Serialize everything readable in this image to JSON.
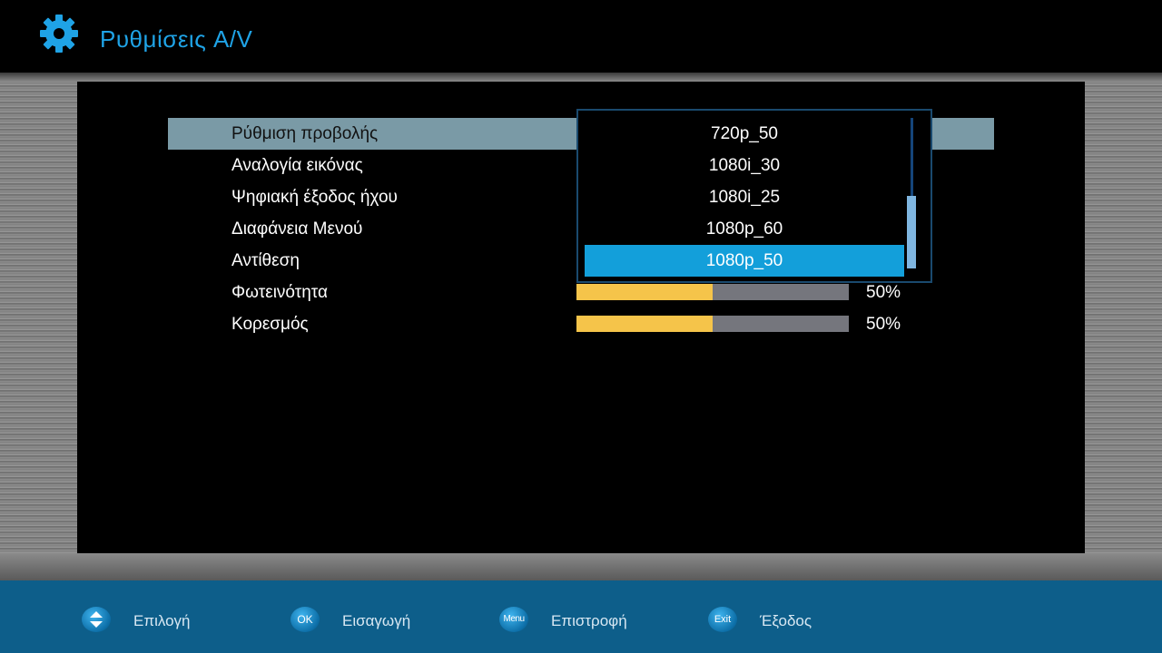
{
  "header": {
    "title": "Ρυθμίσεις A/V",
    "icon": "gear-icon",
    "accent_color": "#1fa3e6"
  },
  "settings": [
    {
      "label": "Ρύθμιση προβολής",
      "selected": true
    },
    {
      "label": "Αναλογία εικόνας"
    },
    {
      "label": "Ψηφιακή έξοδος ήχου"
    },
    {
      "label": "Διαφάνεια Μενού"
    },
    {
      "label": "Αντίθεση"
    },
    {
      "label": "Φωτεινότητα",
      "value": 0.5,
      "value_text": "50%"
    },
    {
      "label": "Κορεσμός",
      "value": 0.5,
      "value_text": "50%"
    }
  ],
  "dropdown": {
    "options": [
      "720p_50",
      "1080i_30",
      "1080i_25",
      "1080p_60",
      "1080p_50"
    ],
    "active_index": 4
  },
  "footer": {
    "hints": [
      {
        "button": "",
        "icon": "up-down-arrows-icon",
        "label": "Επιλογή"
      },
      {
        "button": "OK",
        "label": "Εισαγωγή"
      },
      {
        "button": "Menu",
        "label": "Επιστροφή"
      },
      {
        "button": "Exit",
        "label": "Έξοδος"
      }
    ]
  }
}
